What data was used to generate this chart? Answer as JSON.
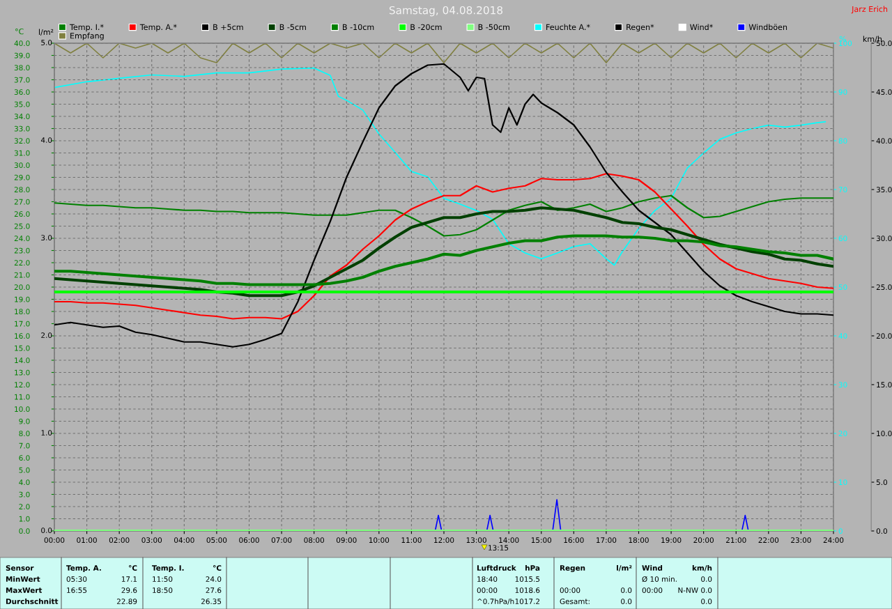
{
  "chart_data": {
    "type": "line",
    "title": "Samstag, 04.08.2018",
    "ylabel": "°C",
    "y2label": "%",
    "y3label": "km/h",
    "x": [
      0,
      0.5,
      1,
      1.5,
      2,
      2.5,
      3,
      3.5,
      4,
      4.5,
      5,
      5.5,
      6,
      6.5,
      7,
      7.5,
      8,
      8.5,
      9,
      9.5,
      10,
      10.5,
      11,
      11.5,
      12,
      12.5,
      13,
      13.5,
      14,
      14.5,
      15,
      15.5,
      16,
      16.5,
      17,
      17.5,
      18,
      18.5,
      19,
      19.5,
      20,
      20.5,
      21,
      21.5,
      22,
      22.5,
      23,
      23.5,
      24
    ],
    "xlim": [
      0,
      24
    ],
    "xticks": [
      {
        "value": 0,
        "label": "00:00"
      },
      {
        "value": 1,
        "label": "01:00"
      },
      {
        "value": 2,
        "label": "02:00"
      },
      {
        "value": 3,
        "label": "03:00"
      },
      {
        "value": 4,
        "label": "04:00"
      },
      {
        "value": 5,
        "label": "05:00"
      },
      {
        "value": 6,
        "label": "06:00"
      },
      {
        "value": 7,
        "label": "07:00"
      },
      {
        "value": 8,
        "label": "08:00"
      },
      {
        "value": 9,
        "label": "09:00"
      },
      {
        "value": 10,
        "label": "10:00"
      },
      {
        "value": 11,
        "label": "11:00"
      },
      {
        "value": 12,
        "label": "12:00"
      },
      {
        "value": 13,
        "label": "13:00"
      },
      {
        "value": 14,
        "label": "14:00"
      },
      {
        "value": 15,
        "label": "15:00"
      },
      {
        "value": 16,
        "label": "16:00"
      },
      {
        "value": 17,
        "label": "17:00"
      },
      {
        "value": 18,
        "label": "18:00"
      },
      {
        "value": 19,
        "label": "19:00"
      },
      {
        "value": 20,
        "label": "20:00"
      },
      {
        "value": 21,
        "label": "21:00"
      },
      {
        "value": 22,
        "label": "22:00"
      },
      {
        "value": 23,
        "label": "23:00"
      },
      {
        "value": 24,
        "label": "24:00"
      }
    ],
    "ylim": [
      0,
      40
    ],
    "yticks": [
      {
        "value": 0,
        "label": "0.0"
      },
      {
        "value": 1,
        "label": "1.0"
      },
      {
        "value": 2,
        "label": "2.0"
      },
      {
        "value": 3,
        "label": "3.0"
      },
      {
        "value": 4,
        "label": "4.0"
      },
      {
        "value": 5,
        "label": "5.0"
      },
      {
        "value": 6,
        "label": "6.0"
      },
      {
        "value": 7,
        "label": "7.0"
      },
      {
        "value": 8,
        "label": "8.0"
      },
      {
        "value": 9,
        "label": "9.0"
      },
      {
        "value": 10,
        "label": "10.0"
      },
      {
        "value": 11,
        "label": "11.0"
      },
      {
        "value": 12,
        "label": "12.0"
      },
      {
        "value": 13,
        "label": "13.0"
      },
      {
        "value": 14,
        "label": "14.0"
      },
      {
        "value": 15,
        "label": "15.0"
      },
      {
        "value": 16,
        "label": "16.0"
      },
      {
        "value": 17,
        "label": "17.0"
      },
      {
        "value": 18,
        "label": "18.0"
      },
      {
        "value": 19,
        "label": "19.0"
      },
      {
        "value": 20,
        "label": "20.0"
      },
      {
        "value": 21,
        "label": "21.0"
      },
      {
        "value": 22,
        "label": "22.0"
      },
      {
        "value": 23,
        "label": "23.0"
      },
      {
        "value": 24,
        "label": "24.0"
      },
      {
        "value": 25,
        "label": "25.0"
      },
      {
        "value": 26,
        "label": "26.0"
      },
      {
        "value": 27,
        "label": "27.0"
      },
      {
        "value": 28,
        "label": "28.0"
      },
      {
        "value": 29,
        "label": "29.0"
      },
      {
        "value": 30,
        "label": "30.0"
      },
      {
        "value": 31,
        "label": "31.0"
      },
      {
        "value": 32,
        "label": "32.0"
      },
      {
        "value": 33,
        "label": "33.0"
      },
      {
        "value": 34,
        "label": "34.0"
      },
      {
        "value": 35,
        "label": "35.0"
      },
      {
        "value": 36,
        "label": "36.0"
      },
      {
        "value": 37,
        "label": "37.0"
      },
      {
        "value": 38,
        "label": "38.0"
      },
      {
        "value": 39,
        "label": "39.0"
      },
      {
        "value": 40,
        "label": "40.0"
      }
    ],
    "y2lim": [
      0,
      100
    ],
    "y2ticks": [
      0,
      10,
      20,
      30,
      40,
      50,
      60,
      70,
      80,
      90,
      100
    ],
    "y3lim": [
      0,
      50
    ],
    "y3ticks": [
      {
        "value": 0,
        "label": "0.0"
      },
      {
        "value": 5,
        "label": "5.0"
      },
      {
        "value": 10,
        "label": "10.0"
      },
      {
        "value": 15,
        "label": "15.0"
      },
      {
        "value": 20,
        "label": "20.0"
      },
      {
        "value": 25,
        "label": "25.0"
      },
      {
        "value": 30,
        "label": "30.0"
      },
      {
        "value": 35,
        "label": "35.0"
      },
      {
        "value": 40,
        "label": "40.0"
      },
      {
        "value": 45,
        "label": "45.0"
      },
      {
        "value": 50,
        "label": "50.0"
      }
    ],
    "grid": true,
    "legend": "top",
    "marker": "none",
    "line_style": "solid",
    "series": [
      {
        "name": "Temp. I.*",
        "color": "#008000",
        "values": [
          26.9,
          26.8,
          26.7,
          26.7,
          26.6,
          26.5,
          26.5,
          26.4,
          26.3,
          26.3,
          26.2,
          26.2,
          26.1,
          26.1,
          26.1,
          26.0,
          25.9,
          25.9,
          25.9,
          26.1,
          26.3,
          26.3,
          25.7,
          25.0,
          24.2,
          24.3,
          24.7,
          25.5,
          26.3,
          26.7,
          27.0,
          26.3,
          26.5,
          26.8,
          26.2,
          26.5,
          27.0,
          27.3,
          27.5,
          26.5,
          25.7,
          25.8,
          26.2,
          26.6,
          27.0,
          27.2,
          27.3,
          27.3,
          27.3
        ]
      },
      {
        "name": "Temp. A.*",
        "color": "#ff0000",
        "values": [
          18.8,
          18.8,
          18.7,
          18.7,
          18.6,
          18.5,
          18.3,
          18.1,
          17.9,
          17.7,
          17.6,
          17.4,
          17.5,
          17.5,
          17.4,
          18.0,
          19.3,
          20.9,
          21.8,
          23.1,
          24.2,
          25.5,
          26.4,
          27.0,
          27.5,
          27.5,
          28.3,
          27.8,
          28.1,
          28.3,
          28.9,
          28.8,
          28.8,
          28.9,
          29.3,
          29.1,
          28.8,
          27.8,
          26.4,
          25.0,
          23.5,
          22.3,
          21.5,
          21.1,
          20.7,
          20.5,
          20.3,
          20.0,
          19.9
        ]
      },
      {
        "name": "B +5cm",
        "color": "#000000",
        "x": [
          0,
          0.5,
          1,
          1.5,
          2,
          2.5,
          3,
          3.5,
          4,
          4.5,
          5,
          5.5,
          6,
          6.5,
          7,
          7.5,
          8,
          8.5,
          9,
          9.5,
          10,
          10.5,
          11,
          11.5,
          12,
          12.5,
          12.75,
          13,
          13.25,
          13.5,
          13.75,
          14,
          14.25,
          14.5,
          14.75,
          15,
          15.5,
          16,
          16.5,
          17,
          17.5,
          18,
          18.5,
          19,
          19.5,
          20,
          20.5,
          21,
          21.5,
          22,
          22.5,
          23,
          23.5,
          24
        ],
        "values": [
          16.9,
          17.1,
          16.9,
          16.7,
          16.8,
          16.3,
          16.1,
          15.8,
          15.5,
          15.5,
          15.3,
          15.1,
          15.3,
          15.7,
          16.2,
          18.8,
          22.2,
          25.4,
          29.0,
          31.9,
          34.7,
          36.5,
          37.5,
          38.2,
          38.3,
          37.2,
          36.1,
          37.2,
          37.1,
          33.3,
          32.7,
          34.7,
          33.3,
          35.0,
          35.8,
          35.1,
          34.3,
          33.3,
          31.5,
          29.4,
          27.8,
          26.3,
          25.3,
          24.3,
          22.8,
          21.3,
          20.1,
          19.3,
          18.8,
          18.4,
          18.0,
          17.8,
          17.8,
          17.7
        ]
      },
      {
        "name": "B -5cm",
        "color": "#004000",
        "values": [
          20.7,
          20.6,
          20.5,
          20.4,
          20.3,
          20.2,
          20.1,
          20.0,
          19.9,
          19.8,
          19.6,
          19.5,
          19.3,
          19.3,
          19.3,
          19.6,
          20.1,
          20.8,
          21.5,
          22.2,
          23.2,
          24.1,
          24.9,
          25.3,
          25.7,
          25.7,
          26.0,
          26.2,
          26.2,
          26.3,
          26.5,
          26.4,
          26.3,
          26.0,
          25.7,
          25.3,
          25.2,
          24.9,
          24.7,
          24.3,
          23.9,
          23.5,
          23.2,
          22.9,
          22.7,
          22.3,
          22.2,
          21.9,
          21.7
        ]
      },
      {
        "name": "B -10cm",
        "color": "#008000",
        "values": [
          21.3,
          21.3,
          21.2,
          21.1,
          21.0,
          20.9,
          20.8,
          20.7,
          20.6,
          20.5,
          20.3,
          20.3,
          20.2,
          20.2,
          20.2,
          20.2,
          20.2,
          20.3,
          20.5,
          20.8,
          21.3,
          21.7,
          22.0,
          22.3,
          22.7,
          22.6,
          23.0,
          23.3,
          23.6,
          23.8,
          23.8,
          24.1,
          24.2,
          24.2,
          24.2,
          24.1,
          24.1,
          24.0,
          23.8,
          23.8,
          23.7,
          23.4,
          23.3,
          23.1,
          22.9,
          22.8,
          22.6,
          22.6,
          22.3
        ]
      },
      {
        "name": "B -20cm",
        "color": "#00ff00",
        "x": [
          0,
          6,
          12,
          18,
          24
        ],
        "values": [
          19.6,
          19.6,
          19.6,
          19.6,
          19.6
        ]
      },
      {
        "name": "B -50cm",
        "color": "#80ff80",
        "x": [
          0,
          24
        ],
        "values": [
          0,
          0
        ]
      },
      {
        "name": "Feuchte A.*",
        "color": "#00ffff",
        "axis": "y2",
        "x": [
          0,
          1,
          2,
          3,
          4,
          5,
          6,
          7,
          8,
          8.5,
          8.75,
          9,
          9.5,
          10,
          10.5,
          11,
          11.5,
          12,
          12.5,
          13,
          13.5,
          14,
          14.5,
          15,
          15.5,
          16,
          16.5,
          17,
          17.25,
          17.5,
          18,
          18.5,
          19,
          19.5,
          20,
          20.5,
          21,
          21.5,
          22,
          22.5,
          23,
          23.5,
          23.75
        ],
        "values": [
          90.9,
          92.1,
          92.8,
          93.5,
          93.2,
          93.9,
          93.9,
          94.7,
          94.9,
          93.4,
          89.1,
          88.3,
          86.3,
          81.4,
          77.6,
          73.7,
          72.6,
          68.2,
          67.0,
          65.7,
          63.9,
          58.9,
          57.0,
          55.8,
          57.0,
          58.3,
          58.9,
          55.8,
          54.5,
          57.3,
          62.0,
          65.7,
          68.2,
          74.4,
          77.5,
          80.3,
          81.6,
          82.5,
          83.2,
          82.8,
          83.2,
          83.7,
          83.9
        ]
      },
      {
        "name": "Regen*",
        "color": "#000000",
        "values": [
          null,
          null,
          null,
          null,
          null,
          null,
          null,
          null,
          null,
          null,
          null,
          null,
          null,
          null,
          null,
          null,
          null,
          null,
          null,
          null,
          null,
          null,
          null,
          null,
          null,
          null,
          null,
          null,
          null,
          null,
          null,
          null,
          null,
          null,
          null,
          null,
          null,
          null,
          null,
          null,
          null,
          null,
          null,
          null,
          null,
          null,
          null,
          null,
          null
        ]
      },
      {
        "name": "Wind*",
        "color": "#ffffff",
        "axis": "y3",
        "values": [
          null,
          null,
          null,
          null,
          null,
          null,
          null,
          null,
          null,
          null,
          null,
          null,
          null,
          null,
          null,
          null,
          null,
          null,
          null,
          null,
          null,
          null,
          null,
          null,
          null,
          null,
          null,
          null,
          null,
          null,
          null,
          null,
          null,
          null,
          null,
          null,
          null,
          null,
          null,
          null,
          null,
          null,
          null,
          null,
          null,
          null,
          null,
          null,
          null
        ]
      },
      {
        "name": "Windböen",
        "color": "#0000ff",
        "axis": "y3",
        "x": [
          11.73,
          11.83,
          11.93,
          12.5,
          13.32,
          13.42,
          13.52,
          14.5,
          15.35,
          15.48,
          15.6,
          18.5,
          21.18,
          21.28,
          21.38
        ],
        "values": [
          0,
          1.6,
          0,
          null,
          0,
          1.6,
          0,
          null,
          0,
          3.2,
          0,
          null,
          0,
          1.6,
          0
        ]
      },
      {
        "name": "Empfang",
        "color": "#808040",
        "axis": "y2",
        "x": [
          0,
          0.5,
          1,
          1.5,
          2,
          2.5,
          3,
          3.5,
          4,
          4.5,
          5,
          5.5,
          6,
          6.5,
          7,
          7.5,
          8,
          8.5,
          9,
          9.5,
          10,
          10.5,
          11,
          11.5,
          12,
          12.5,
          13,
          13.5,
          14,
          14.5,
          15,
          15.5,
          16,
          16.5,
          17,
          17.5,
          18,
          18.5,
          19,
          19.5,
          20,
          20.5,
          21,
          21.5,
          22,
          22.5,
          23,
          23.5,
          24
        ],
        "values": [
          100,
          98,
          100,
          97,
          100,
          99,
          100,
          98,
          100,
          97,
          96,
          100,
          98,
          100,
          97,
          100,
          98,
          100,
          99,
          100,
          97,
          100,
          98,
          100,
          96,
          100,
          98,
          100,
          97,
          100,
          98,
          100,
          97,
          100,
          96,
          100,
          98,
          100,
          97,
          100,
          98,
          100,
          97,
          100,
          98,
          100,
          97,
          100,
          99
        ]
      }
    ],
    "annotations": [
      "Jarz Erich",
      "Sensor\nMinWert\nMaxWert\nDurchschnitt",
      "Temp. A.\n05:30\n16:55\n",
      "°C\n17.1\n29.6\n22.89",
      "Temp. I.\n11:50\n18:50\n",
      "°C\n24.0\n27.6\n26.35",
      "Luftdruck\n18:40\n00:00\n^0.7hPa/h",
      "hPa\n1015.5\n1018.6\n1017.2",
      "Regen\n\n00:00\nGesamt:",
      "l/m²\n\n0.0\n0.0",
      "Wind\nØ 10 min.\n00:00\n",
      "km/h\n0.0\nN-NW 0.0\n0.0",
      "13:15",
      "l/m²",
      "0.0\n1.0\n2.0\n3.0\n4.0\n5.0"
    ]
  }
}
